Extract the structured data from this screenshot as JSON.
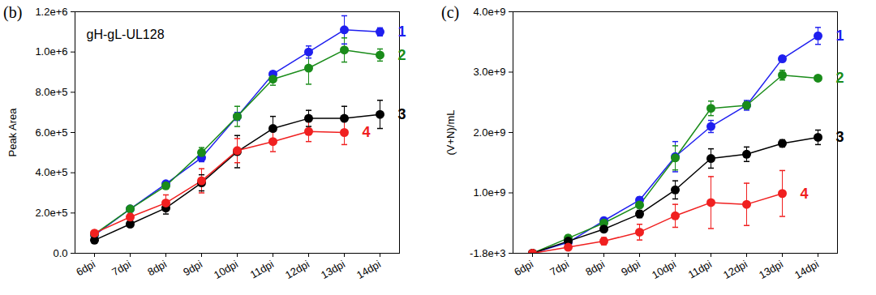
{
  "chart_data": [
    {
      "type": "line",
      "title": "(b)",
      "annotations": [
        "gH-gL-UL128"
      ],
      "y_label": "Peak Area",
      "categories": [
        "6dpi",
        "7dpi",
        "8dpi",
        "9dpi",
        "10dpi",
        "11dpi",
        "12dpi",
        "13dpi",
        "14dpi"
      ],
      "ylim": [
        0,
        1200000
      ],
      "yticks": [
        {
          "value": 0,
          "label": "0.0"
        },
        {
          "value": 200000,
          "label": "2.0e+5"
        },
        {
          "value": 400000,
          "label": "4.0e+5"
        },
        {
          "value": 600000,
          "label": "6.0e+5"
        },
        {
          "value": 800000,
          "label": "8.0e+5"
        },
        {
          "value": 1000000,
          "label": "1.0e+6"
        },
        {
          "value": 1200000,
          "label": "1.2e+6"
        }
      ],
      "grid": false,
      "marker": "circle",
      "series": [
        {
          "name": "1",
          "color": "#1f1fef",
          "values": [
            90000,
            220000,
            345000,
            475000,
            680000,
            890000,
            1000000,
            1110000,
            1100000
          ],
          "errors": [
            5000,
            10000,
            10000,
            20000,
            20000,
            15000,
            30000,
            70000,
            20000
          ]
        },
        {
          "name": "2",
          "color": "#1a8c1a",
          "values": [
            95000,
            220000,
            335000,
            500000,
            680000,
            865000,
            920000,
            1010000,
            985000
          ],
          "errors": [
            5000,
            10000,
            10000,
            25000,
            50000,
            30000,
            80000,
            60000,
            30000
          ]
        },
        {
          "name": "3",
          "color": "#000000",
          "values": [
            65000,
            145000,
            225000,
            350000,
            505000,
            620000,
            670000,
            670000,
            690000
          ],
          "errors": [
            5000,
            10000,
            30000,
            40000,
            80000,
            60000,
            40000,
            60000,
            70000
          ]
        },
        {
          "name": "4",
          "color": "#f02020",
          "values": [
            100000,
            180000,
            250000,
            360000,
            510000,
            555000,
            605000,
            600000,
            null
          ],
          "errors": [
            10000,
            15000,
            40000,
            60000,
            60000,
            50000,
            50000,
            60000,
            null
          ]
        }
      ]
    },
    {
      "type": "line",
      "title": "(c)",
      "y_label": "(V+N)/mL",
      "categories": [
        "6dpi",
        "7dpi",
        "8dpi",
        "9dpi",
        "10dpi",
        "11dpi",
        "12dpi",
        "13dpi",
        "14dpi"
      ],
      "ylim": [
        -1800,
        4000000000
      ],
      "yticks": [
        {
          "value": -1800,
          "label": "-1.8e+3"
        },
        {
          "value": 1000000000,
          "label": "1.0e+9"
        },
        {
          "value": 2000000000,
          "label": "2.0e+9"
        },
        {
          "value": 3000000000,
          "label": "3.0e+9"
        },
        {
          "value": 4000000000,
          "label": "4.0e+9"
        }
      ],
      "grid": false,
      "marker": "circle",
      "series": [
        {
          "name": "1",
          "color": "#1f1fef",
          "values": [
            0,
            180000000,
            540000000,
            880000000,
            1600000000,
            2100000000,
            2450000000,
            3220000000,
            3600000000
          ],
          "errors": [
            10000000,
            30000000,
            50000000,
            50000000,
            250000000,
            100000000,
            80000000,
            50000000,
            140000000
          ]
        },
        {
          "name": "2",
          "color": "#1a8c1a",
          "values": [
            0,
            250000000,
            500000000,
            800000000,
            1580000000,
            2400000000,
            2450000000,
            2950000000,
            2900000000
          ],
          "errors": [
            10000000,
            50000000,
            30000000,
            50000000,
            200000000,
            120000000,
            60000000,
            80000000,
            30000000
          ]
        },
        {
          "name": "3",
          "color": "#000000",
          "values": [
            0,
            200000000,
            400000000,
            650000000,
            1050000000,
            1570000000,
            1640000000,
            1820000000,
            1920000000
          ],
          "errors": [
            10000000,
            30000000,
            50000000,
            60000000,
            150000000,
            160000000,
            120000000,
            60000000,
            120000000
          ]
        },
        {
          "name": "4",
          "color": "#f02020",
          "values": [
            0,
            100000000,
            200000000,
            350000000,
            620000000,
            840000000,
            810000000,
            990000000,
            null
          ],
          "errors": [
            10000000,
            30000000,
            60000000,
            130000000,
            190000000,
            430000000,
            350000000,
            380000000,
            null
          ]
        }
      ]
    }
  ]
}
